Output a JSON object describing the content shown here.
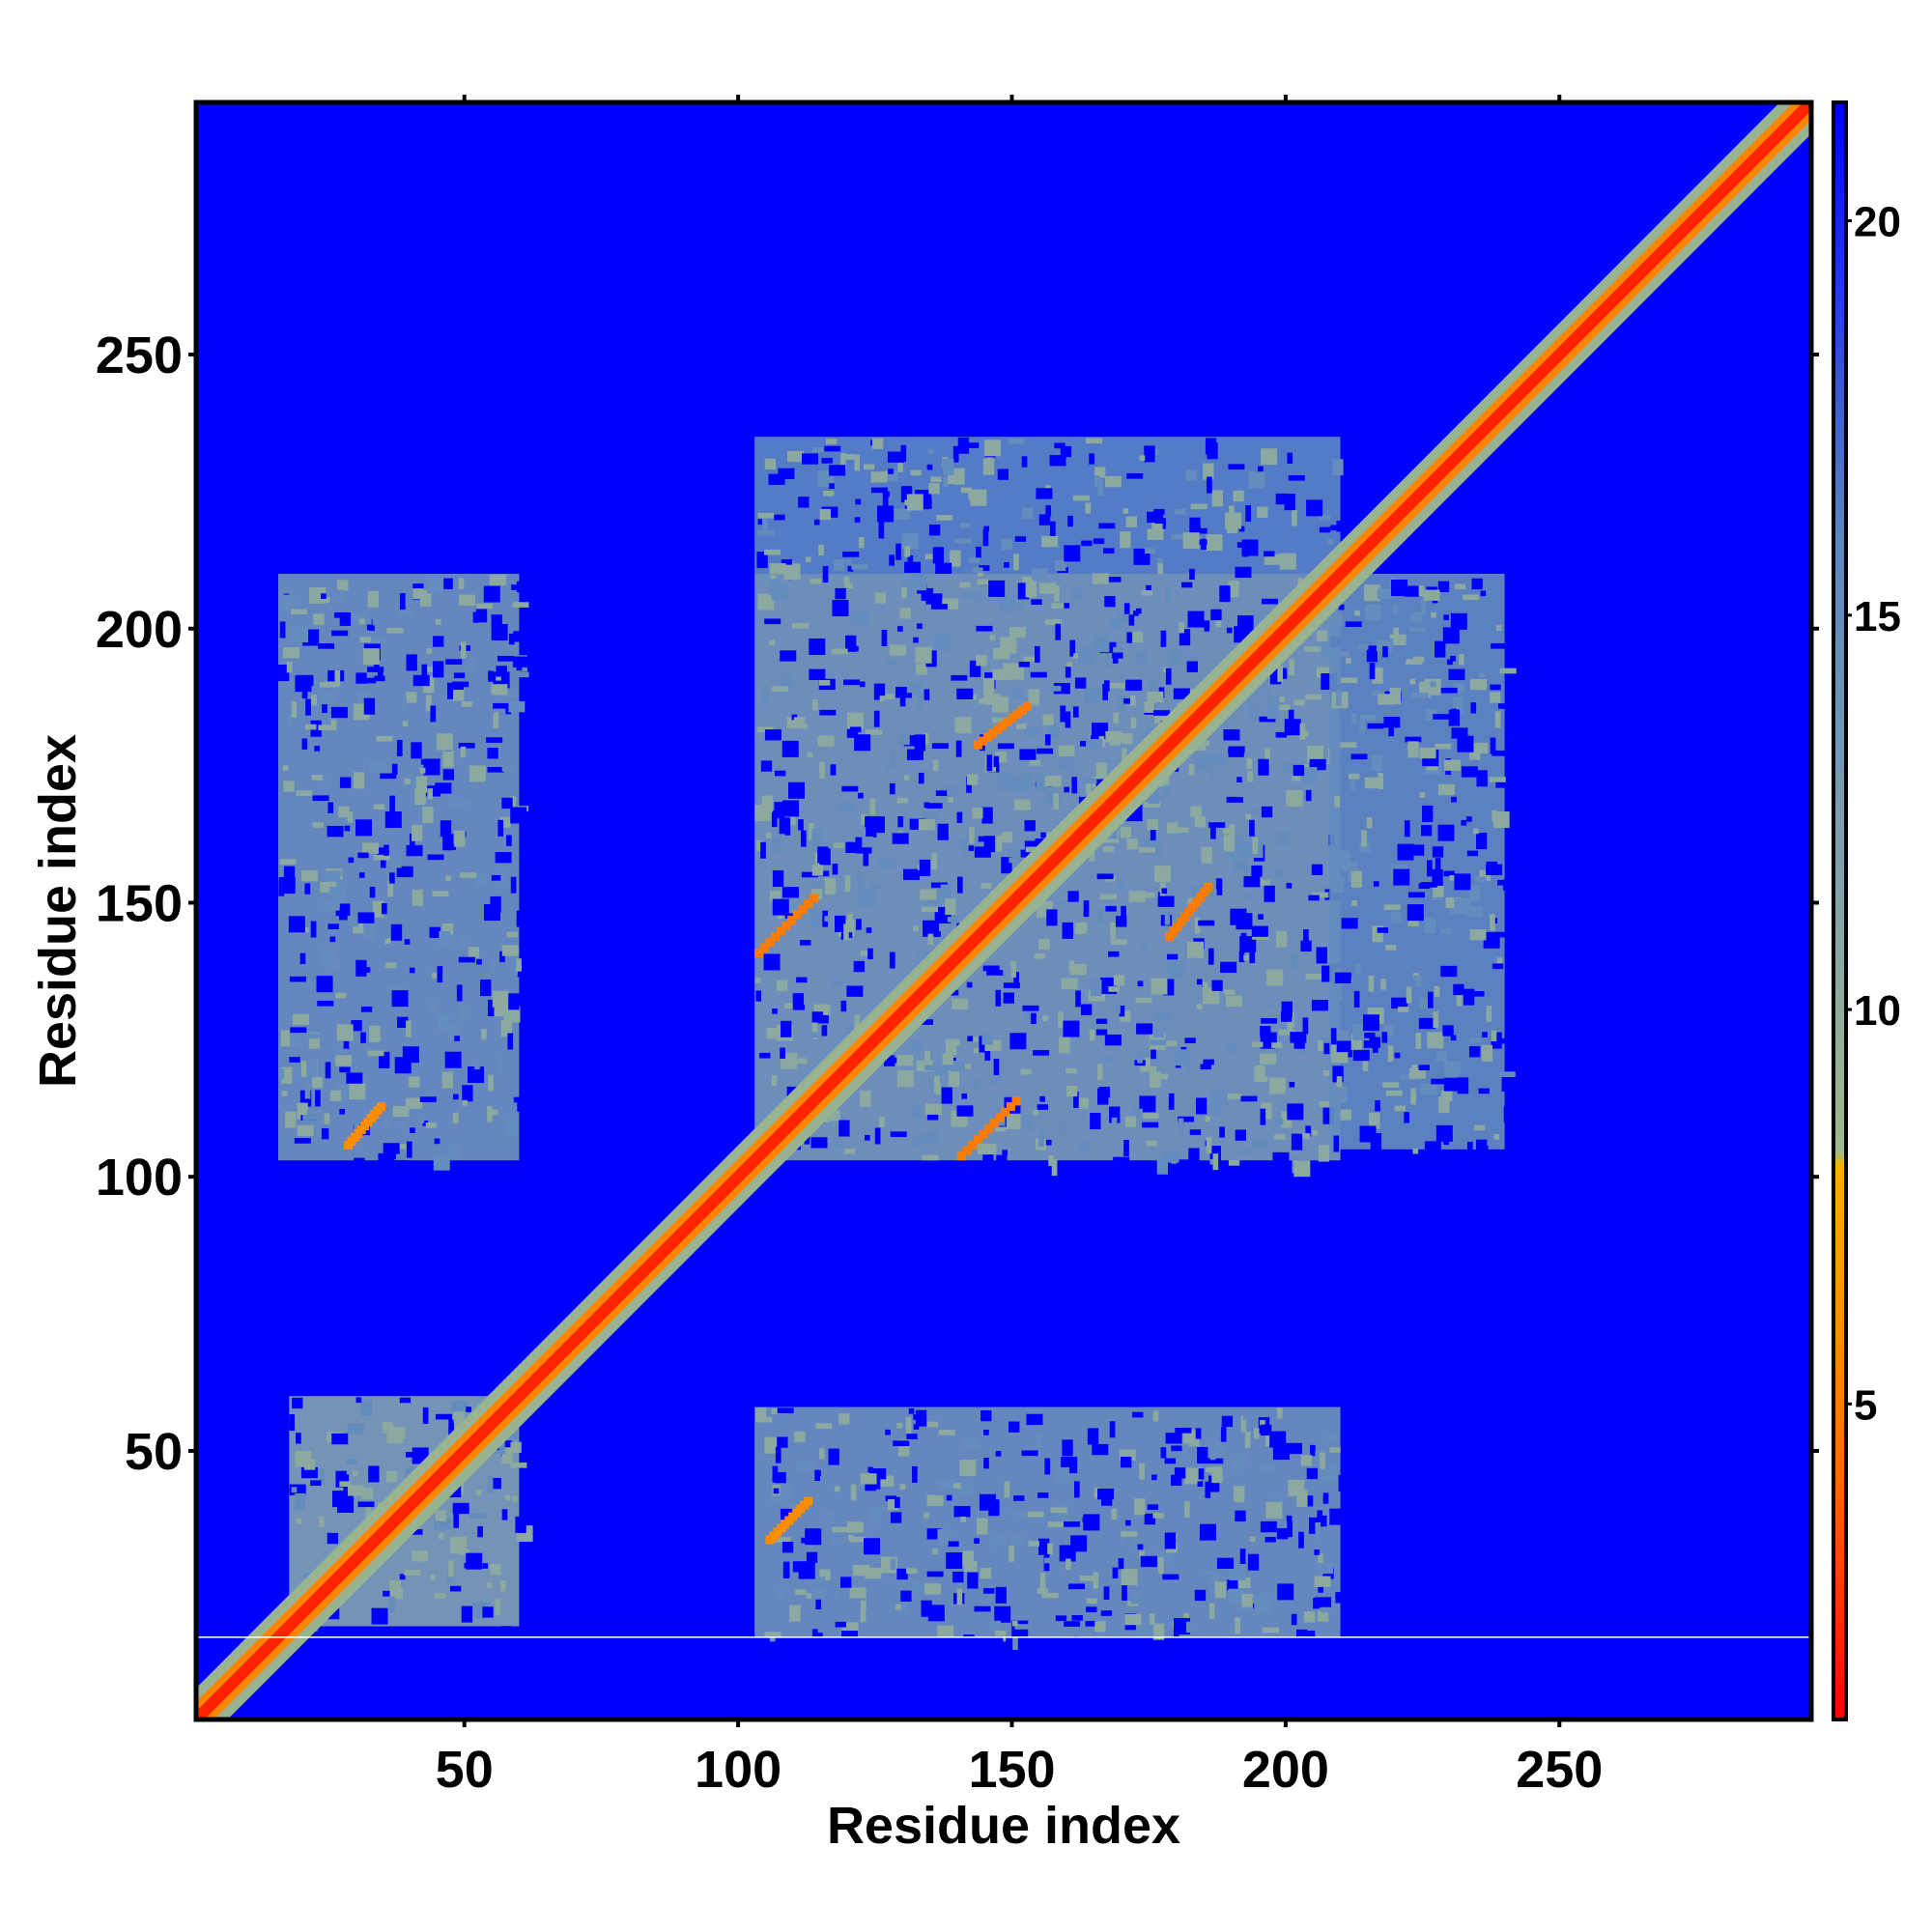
{
  "chart_data": {
    "type": "heatmap",
    "title": "",
    "xlabel": "Residue index",
    "ylabel": "Residue index",
    "xlim": [
      1,
      296
    ],
    "ylim": [
      1,
      296
    ],
    "x_ticks": [
      50,
      100,
      150,
      200,
      250
    ],
    "y_ticks": [
      50,
      100,
      150,
      200,
      250
    ],
    "colorbar": {
      "ticks": [
        5,
        10,
        15,
        20
      ],
      "range": [
        1,
        21.5
      ],
      "colors": [
        {
          "value": 1,
          "color": "#ff0000"
        },
        {
          "value": 4,
          "color": "#ff6a00"
        },
        {
          "value": 8,
          "color": "#ffb000"
        },
        {
          "value": 8.2,
          "color": "#9fb88a"
        },
        {
          "value": 12,
          "color": "#7f9fb0"
        },
        {
          "value": 16,
          "color": "#5b86c0"
        },
        {
          "value": 21.5,
          "color": "#0000ff"
        }
      ]
    },
    "background_value": 21.5,
    "grid": false,
    "diagonal_band": {
      "from": 1,
      "to": 296,
      "core_value": 2,
      "shoulder_value": 9
    },
    "contact_blocks": [
      {
        "x": [
          18,
          60
        ],
        "y": [
          18,
          60
        ],
        "value": 12
      },
      {
        "x": [
          103,
          210
        ],
        "y": [
          103,
          210
        ],
        "value": 13
      },
      {
        "x": [
          103,
          210
        ],
        "y": [
          16,
          58
        ],
        "value": 14
      },
      {
        "x": [
          16,
          60
        ],
        "y": [
          103,
          210
        ],
        "value": 14
      },
      {
        "x": [
          208,
          240
        ],
        "y": [
          105,
          210
        ],
        "value": 15
      },
      {
        "x": [
          103,
          210
        ],
        "y": [
          210,
          235
        ],
        "value": 16
      }
    ],
    "secondary_contacts": [
      {
        "x": [
          103,
          113
        ],
        "y": [
          140,
          150
        ],
        "value": 5
      },
      {
        "x": [
          140,
          150
        ],
        "y": [
          103,
          113
        ],
        "value": 5
      },
      {
        "x": [
          143,
          152
        ],
        "y": [
          178,
          185
        ],
        "value": 5
      },
      {
        "x": [
          178,
          185
        ],
        "y": [
          143,
          152
        ],
        "value": 5
      },
      {
        "x": [
          28,
          34
        ],
        "y": [
          105,
          112
        ],
        "value": 6
      },
      {
        "x": [
          105,
          112
        ],
        "y": [
          33,
          40
        ],
        "value": 6
      }
    ],
    "missing_row": 16
  }
}
